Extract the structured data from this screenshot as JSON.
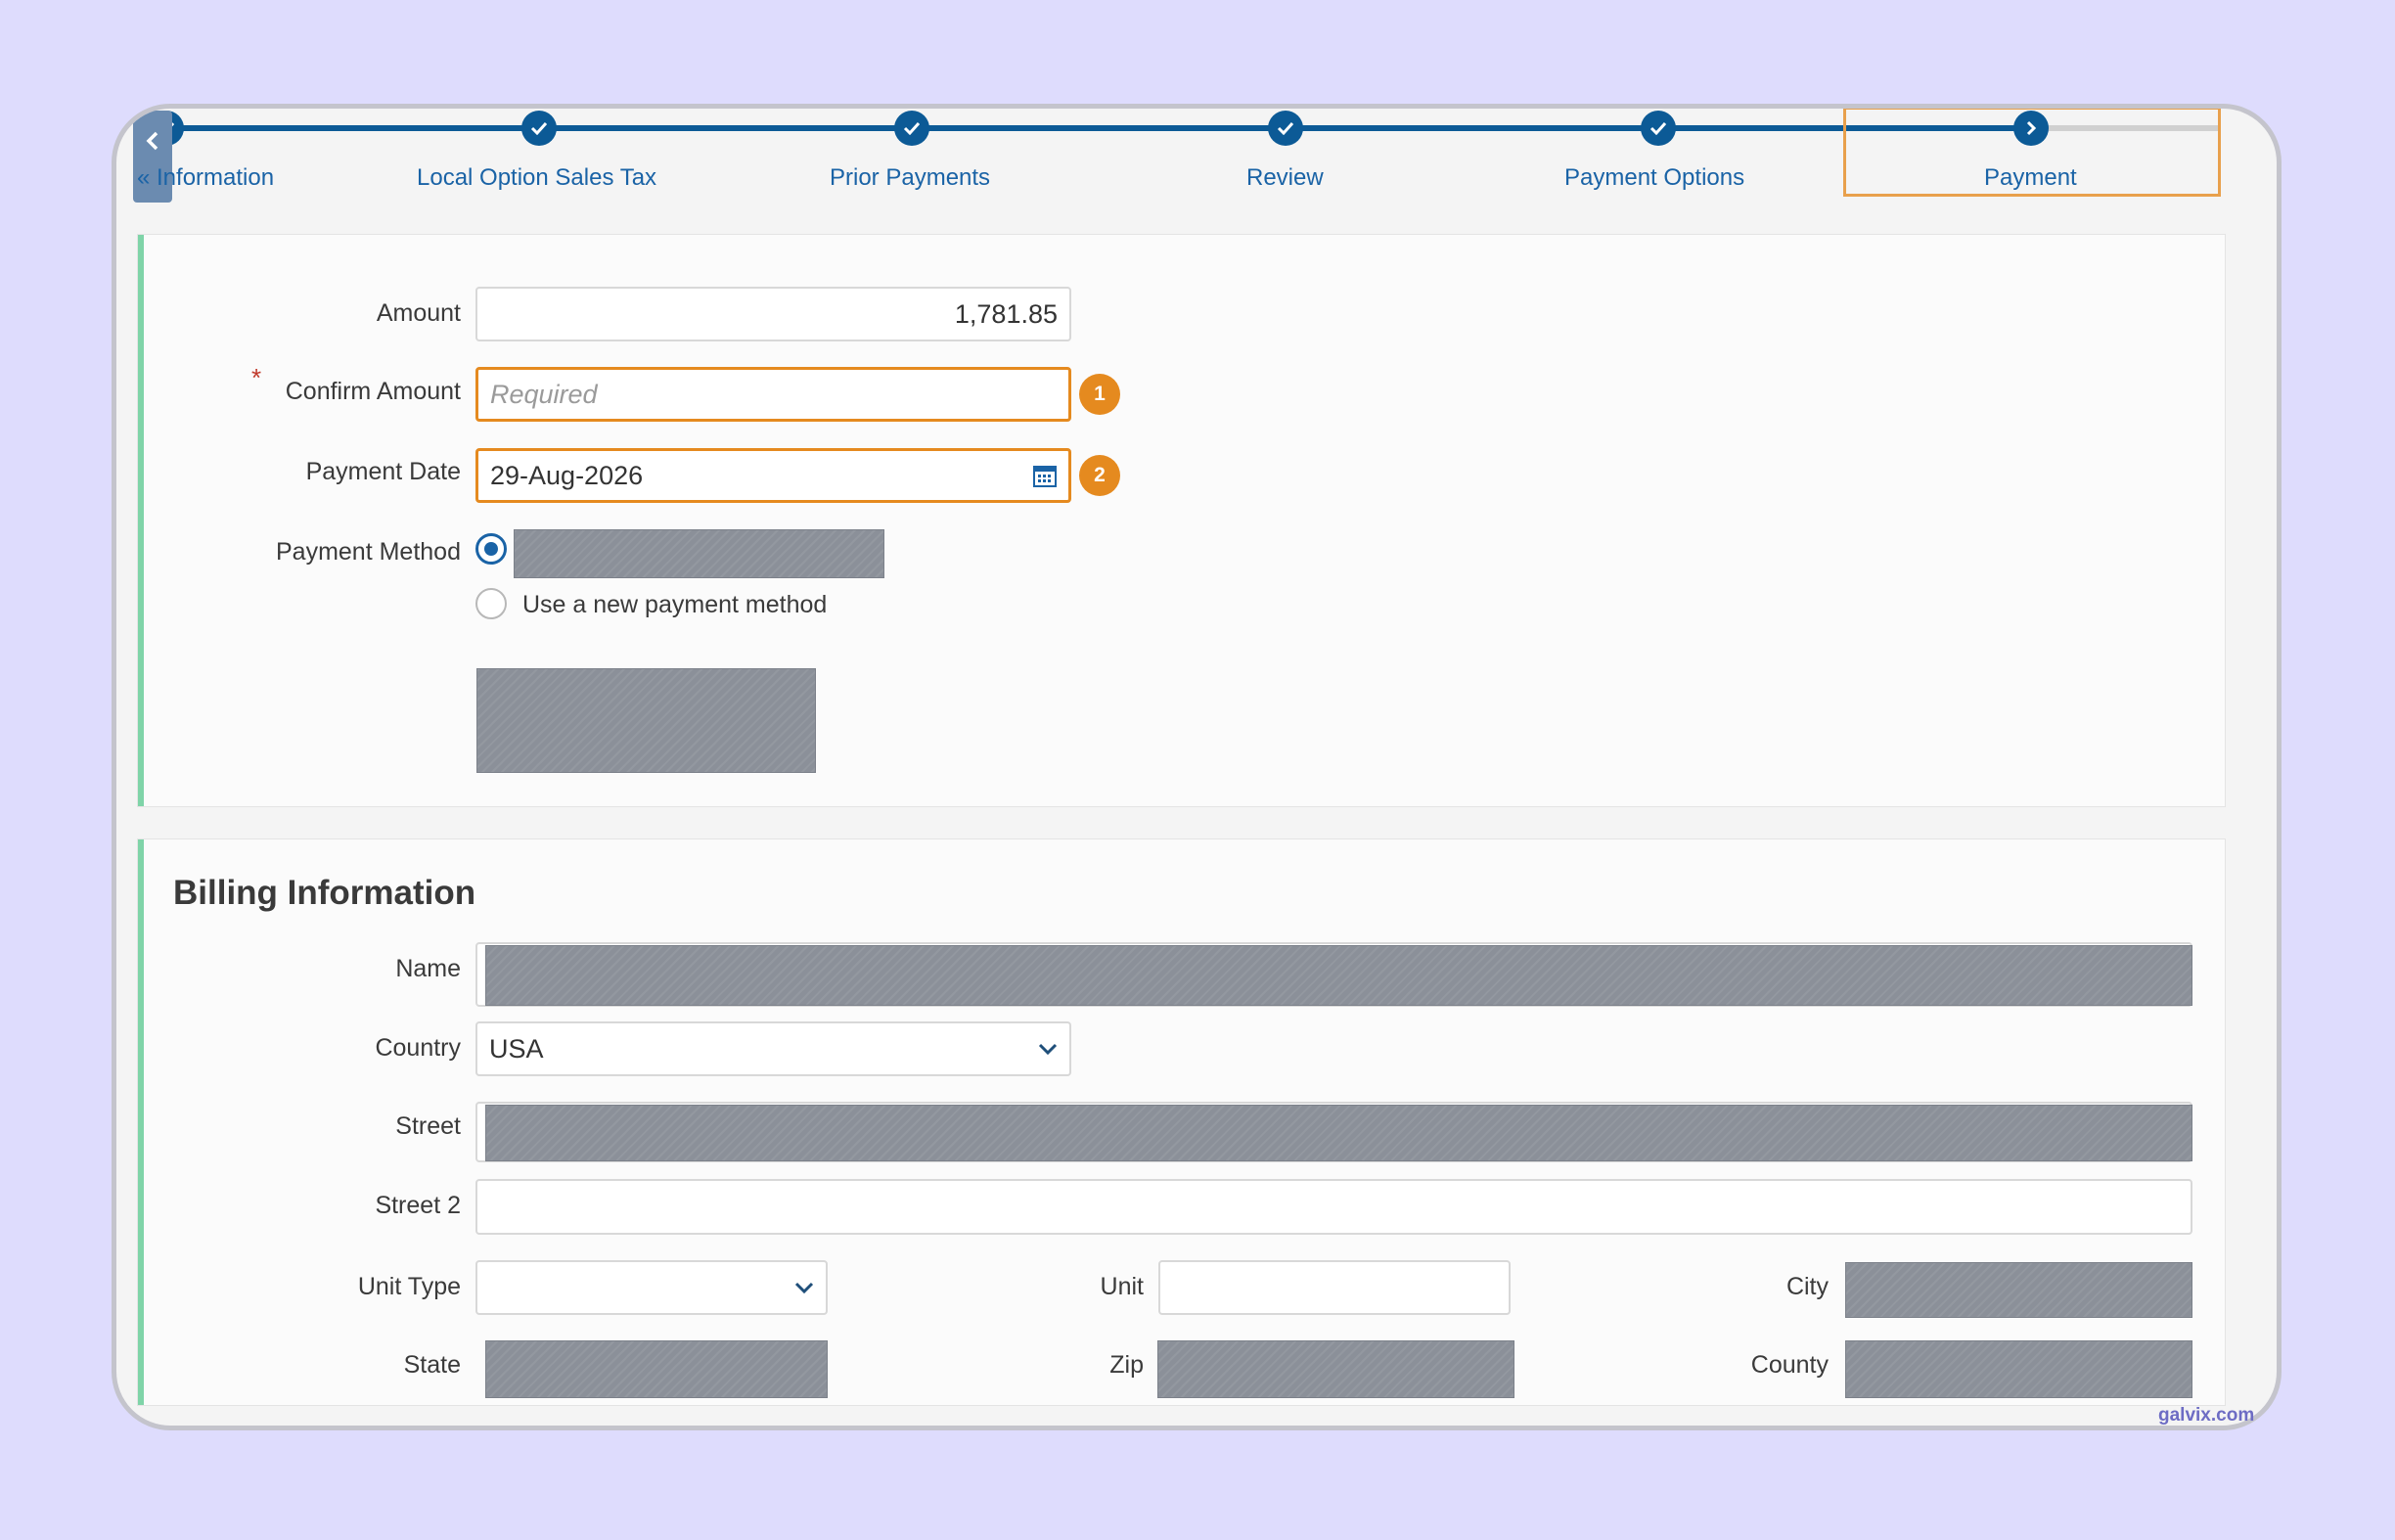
{
  "steps": [
    {
      "label": "« Information"
    },
    {
      "label": "Local Option Sales Tax"
    },
    {
      "label": "Prior Payments"
    },
    {
      "label": "Review"
    },
    {
      "label": "Payment Options"
    },
    {
      "label": "Payment"
    }
  ],
  "payment": {
    "amount_label": "Amount",
    "amount_value": "1,781.85",
    "confirm_required_mark": "*",
    "confirm_label": "Confirm Amount",
    "confirm_placeholder": "Required",
    "confirm_badge": "1",
    "date_label": "Payment Date",
    "date_value": "29-Aug-2026",
    "date_badge": "2",
    "method_label": "Payment Method",
    "new_method_label": "Use a new payment method"
  },
  "billing": {
    "title": "Billing Information",
    "name_label": "Name",
    "country_label": "Country",
    "country_value": "USA",
    "street_label": "Street",
    "street2_label": "Street 2",
    "unit_type_label": "Unit Type",
    "unit_label": "Unit",
    "city_label": "City",
    "state_label": "State",
    "zip_label": "Zip",
    "county_label": "County"
  },
  "watermark": "galvix.com",
  "colors": {
    "accent": "#0c5a96",
    "highlight": "#e58a1f",
    "section_bar": "#7fd4a8",
    "background": "#dedcfd"
  }
}
